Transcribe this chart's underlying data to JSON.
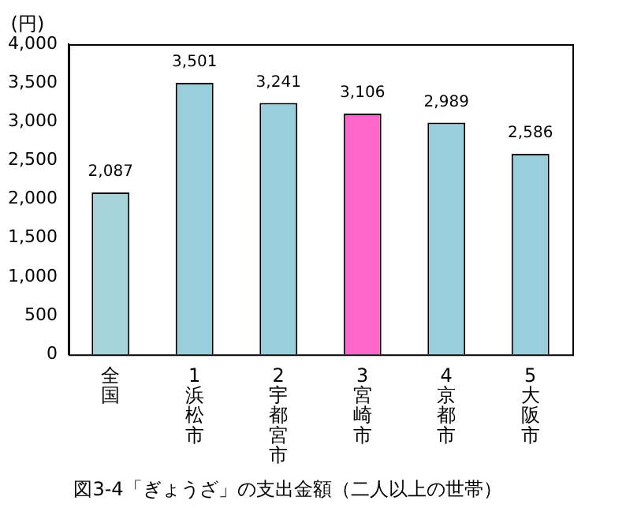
{
  "chart_data": {
    "type": "bar",
    "title": "図3-4「ぎょうざ」の支出金額（二人以上の世帯）",
    "ylabel": "(円)",
    "categories": [
      "全国",
      "1浜松市",
      "2宇都宮市",
      "3宮崎市",
      "4京都市",
      "5大阪市"
    ],
    "values": [
      2087,
      3501,
      3241,
      3106,
      2989,
      2586
    ],
    "value_labels": [
      "2,087",
      "3,501",
      "3,241",
      "3,106",
      "2,989",
      "2,586"
    ],
    "colors": [
      "#a9d3dc",
      "#99cedd",
      "#99cedd",
      "#ff66cc",
      "#99cedd",
      "#99cedd"
    ],
    "ylim": [
      0,
      4000
    ],
    "yticks": [
      0,
      500,
      {
        "value": 1000,
        "label": "1,000"
      },
      {
        "value": 1500,
        "label": "1,500"
      },
      {
        "value": 2000,
        "label": "2,000"
      },
      {
        "value": 2500,
        "label": "2,500"
      },
      {
        "value": 3000,
        "label": "3,000"
      },
      {
        "value": 3500,
        "label": "3,500"
      },
      {
        "value": 4000,
        "label": "4,000"
      }
    ],
    "grid": false,
    "legend": false
  }
}
